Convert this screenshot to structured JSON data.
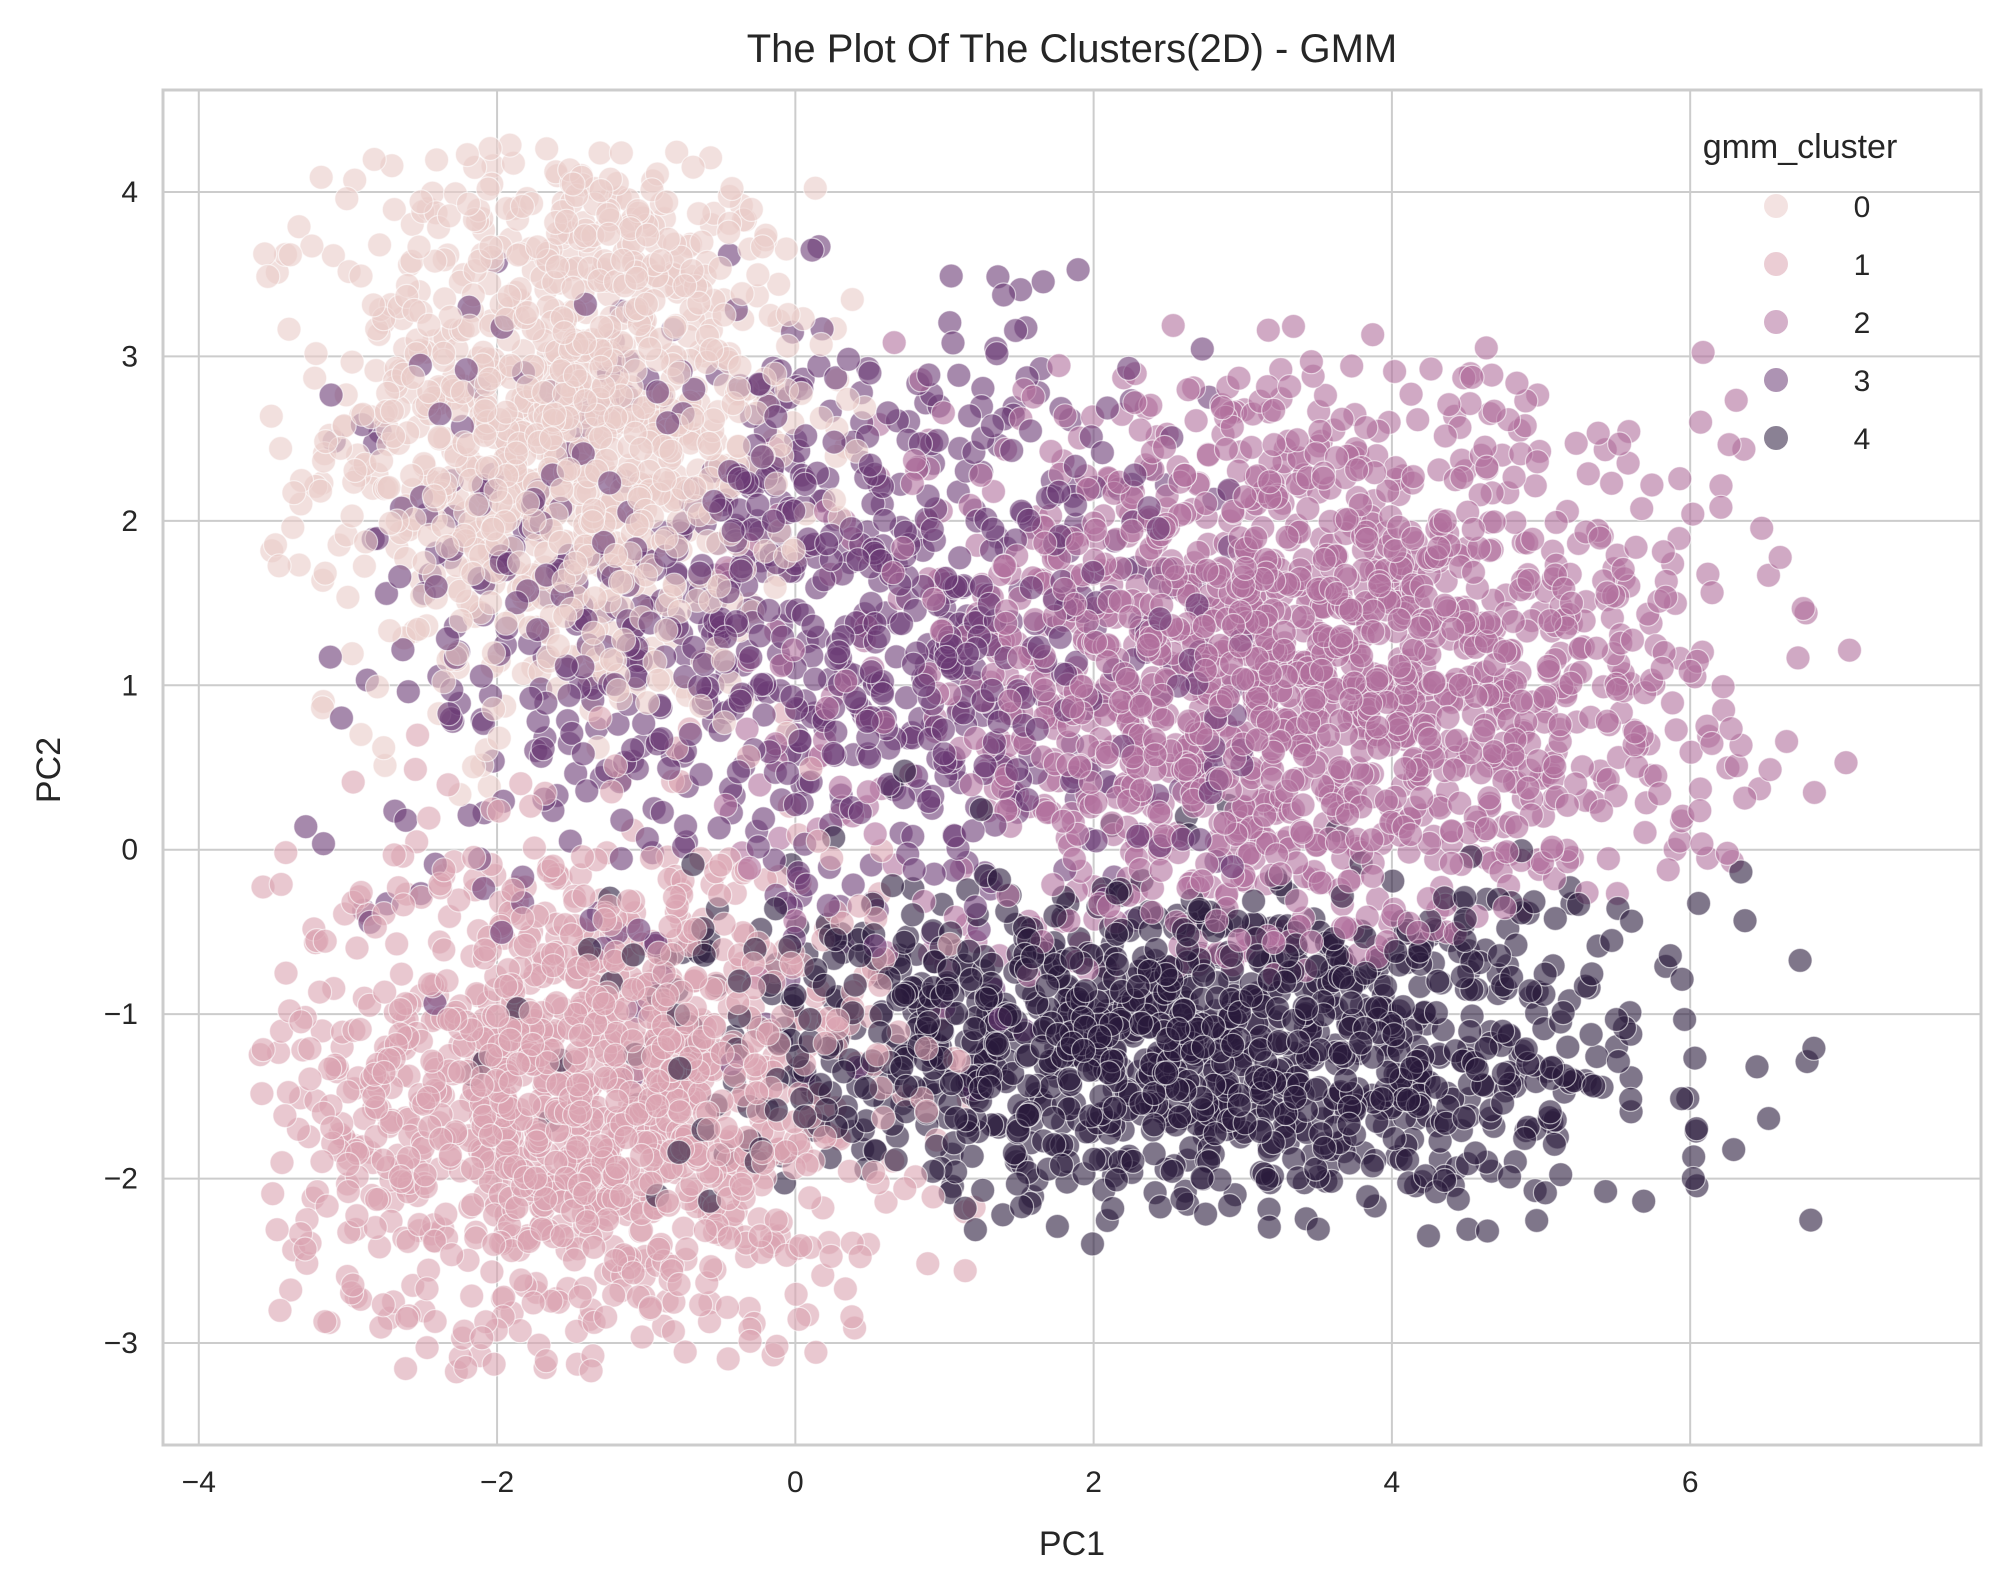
{
  "chart_data": {
    "type": "scatter",
    "title": "The Plot Of The Clusters(2D) - GMM",
    "xlabel": "PC1",
    "ylabel": "PC2",
    "xlim": [
      -4.24,
      7.95
    ],
    "ylim": [
      -3.62,
      4.62
    ],
    "xticks": [
      -4,
      -2,
      0,
      2,
      4,
      6
    ],
    "xtick_labels": [
      "−4",
      "−2",
      "0",
      "2",
      "4",
      "6"
    ],
    "yticks": [
      -3,
      -2,
      -1,
      0,
      1,
      2,
      3,
      4
    ],
    "ytick_labels": [
      "−3",
      "−2",
      "−1",
      "0",
      "1",
      "2",
      "3",
      "4"
    ],
    "grid": true,
    "legend": {
      "title": "gmm_cluster",
      "placement": "top-right"
    },
    "point_alpha": 0.6,
    "series": [
      {
        "name": "0",
        "color": "#e9cbc8",
        "count": 1100,
        "mean": [
          -1.5,
          2.6
        ],
        "std": [
          0.8,
          0.9
        ],
        "xrange": [
          -3.6,
          0.6
        ],
        "yrange": [
          0.3,
          4.3
        ]
      },
      {
        "name": "1",
        "color": "#dba4b0",
        "count": 1300,
        "mean": [
          -1.4,
          -1.5
        ],
        "std": [
          1.0,
          0.8
        ],
        "xrange": [
          -3.6,
          1.2
        ],
        "yrange": [
          -3.2,
          1.0
        ]
      },
      {
        "name": "2",
        "color": "#b06f9c",
        "count": 1700,
        "mean": [
          3.4,
          1.0
        ],
        "std": [
          1.4,
          0.9
        ],
        "xrange": [
          -0.5,
          7.4
        ],
        "yrange": [
          -0.8,
          3.2
        ]
      },
      {
        "name": "3",
        "color": "#6a3a74",
        "count": 900,
        "mean": [
          0.2,
          1.4
        ],
        "std": [
          1.5,
          1.0
        ],
        "xrange": [
          -3.3,
          3.0
        ],
        "yrange": [
          -1.5,
          3.7
        ]
      },
      {
        "name": "4",
        "color": "#2a1a3c",
        "count": 1300,
        "mean": [
          2.6,
          -1.2
        ],
        "std": [
          1.6,
          0.5
        ],
        "xrange": [
          -3.7,
          7.0
        ],
        "yrange": [
          -2.4,
          0.9
        ]
      }
    ]
  }
}
